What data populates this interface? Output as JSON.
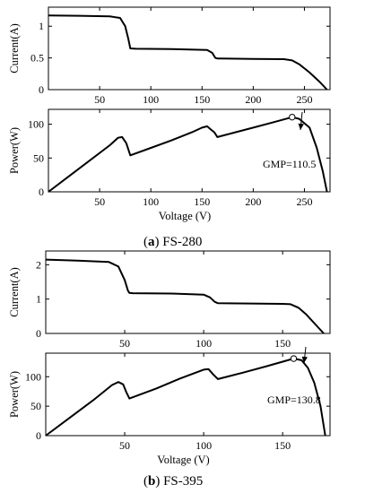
{
  "chart_data": [
    {
      "type": "line",
      "panel": "a-current",
      "xlabel": "",
      "ylabel": "Current(A)",
      "xlim": [
        0,
        275
      ],
      "ylim": [
        0,
        1.3
      ],
      "xticks": [
        50,
        100,
        150,
        200,
        250
      ],
      "yticks": [
        0,
        0.5,
        1
      ],
      "ytick_labels": [
        "0",
        "0.5",
        "1"
      ],
      "grid": false,
      "series": [
        {
          "x": [
            0,
            30,
            60,
            70,
            75,
            78,
            80,
            85,
            120,
            155,
            160,
            163,
            165,
            200,
            230,
            238,
            245,
            255,
            265,
            272
          ],
          "y": [
            1.17,
            1.165,
            1.155,
            1.13,
            1.0,
            0.8,
            0.65,
            0.645,
            0.64,
            0.625,
            0.58,
            0.5,
            0.49,
            0.485,
            0.48,
            0.46,
            0.4,
            0.27,
            0.12,
            0.0
          ]
        }
      ]
    },
    {
      "type": "line",
      "panel": "a-power",
      "xlabel": "Voltage (V)",
      "ylabel": "Power(W)",
      "xlim": [
        0,
        275
      ],
      "ylim": [
        0,
        122
      ],
      "xticks": [
        50,
        100,
        150,
        200,
        250
      ],
      "yticks": [
        0,
        50,
        100
      ],
      "grid": false,
      "series": [
        {
          "x": [
            0,
            20,
            40,
            60,
            68,
            72,
            76,
            80,
            100,
            120,
            140,
            150,
            155,
            158,
            162,
            165,
            180,
            200,
            220,
            238,
            245,
            255,
            262,
            268,
            272
          ],
          "y": [
            0,
            23,
            46,
            69,
            80,
            81,
            72,
            54,
            65,
            76,
            88,
            95,
            97,
            93,
            88,
            81,
            87,
            95,
            103,
            110.5,
            108,
            95,
            65,
            30,
            0
          ]
        }
      ],
      "annotations": [
        {
          "text": "GMP=110.5",
          "x": 238,
          "y": 110.5
        }
      ]
    },
    {
      "type": "line",
      "panel": "b-current",
      "xlabel": "",
      "ylabel": "Current(A)",
      "xlim": [
        0,
        180
      ],
      "ylim": [
        0,
        2.4
      ],
      "xticks": [
        50,
        100,
        150
      ],
      "yticks": [
        0,
        1,
        2
      ],
      "grid": false,
      "series": [
        {
          "x": [
            0,
            20,
            40,
            46,
            50,
            52,
            53,
            55,
            80,
            100,
            104,
            107,
            109,
            130,
            150,
            155,
            160,
            165,
            170,
            176
          ],
          "y": [
            2.15,
            2.12,
            2.08,
            1.95,
            1.55,
            1.25,
            1.18,
            1.17,
            1.16,
            1.13,
            1.05,
            0.92,
            0.88,
            0.87,
            0.86,
            0.85,
            0.75,
            0.55,
            0.3,
            0.0
          ]
        }
      ]
    },
    {
      "type": "line",
      "panel": "b-power",
      "xlabel": "Voltage (V)",
      "ylabel": "Power(W)",
      "xlim": [
        0,
        180
      ],
      "ylim": [
        0,
        140
      ],
      "xticks": [
        50,
        100,
        150
      ],
      "yticks": [
        0,
        50,
        100
      ],
      "grid": false,
      "series": [
        {
          "x": [
            0,
            15,
            30,
            42,
            46,
            49,
            51,
            53,
            70,
            85,
            100,
            103,
            106,
            109,
            125,
            140,
            157,
            162,
            166,
            170,
            174,
            177
          ],
          "y": [
            0,
            30,
            60,
            86,
            91,
            87,
            74,
            63,
            80,
            97,
            112,
            113,
            104,
            96,
            107,
            118,
            130.8,
            128,
            115,
            90,
            50,
            0
          ]
        }
      ],
      "annotations": [
        {
          "text": "GMP=130.8",
          "x": 157,
          "y": 130.8
        }
      ]
    }
  ],
  "captions": {
    "a_letter": "a",
    "a_name": "FS-280",
    "b_letter": "b",
    "b_name": "FS-395"
  }
}
